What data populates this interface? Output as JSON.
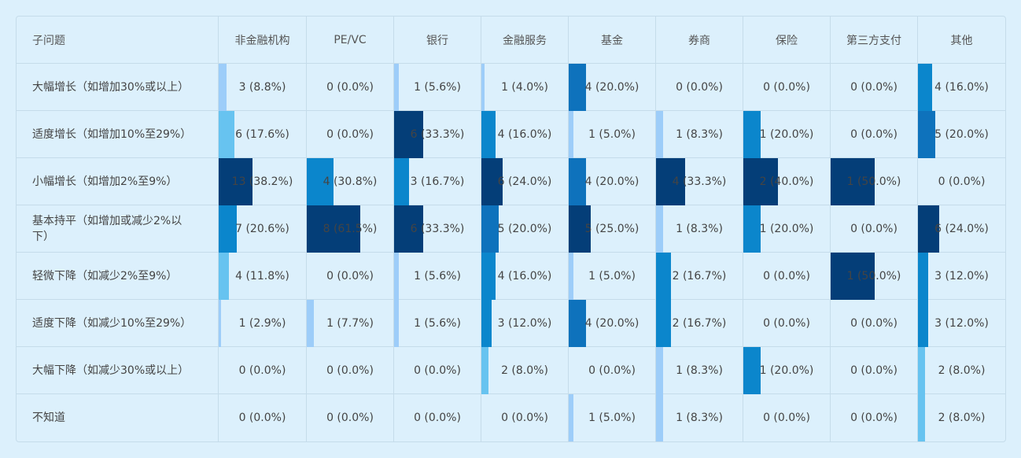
{
  "chart_data": {
    "type": "table",
    "header_label": "子问题",
    "columns": [
      "非金融机构",
      "PE/VC",
      "银行",
      "金融服务",
      "基金",
      "券商",
      "保险",
      "第三方支付",
      "其他"
    ],
    "rows": [
      {
        "label": "大幅增长（如增加30%或以上）",
        "counts": [
          3,
          0,
          1,
          1,
          4,
          0,
          0,
          0,
          4
        ],
        "cells": [
          "3 (8.8%)",
          "0 (0.0%)",
          "1 (5.6%)",
          "1 (4.0%)",
          "4 (20.0%)",
          "0 (0.0%)",
          "0 (0.0%)",
          "0 (0.0%)",
          "4 (16.0%)"
        ]
      },
      {
        "label": "适度增长（如增加10%至29%）",
        "counts": [
          6,
          0,
          6,
          4,
          1,
          1,
          1,
          0,
          5
        ],
        "cells": [
          "6 (17.6%)",
          "0 (0.0%)",
          "6 (33.3%)",
          "4 (16.0%)",
          "1 (5.0%)",
          "1 (8.3%)",
          "1 (20.0%)",
          "0 (0.0%)",
          "5 (20.0%)"
        ]
      },
      {
        "label": "小幅增长（如增加2%至9%）",
        "counts": [
          13,
          4,
          3,
          6,
          4,
          4,
          2,
          1,
          0
        ],
        "cells": [
          "13 (38.2%)",
          "4 (30.8%)",
          "3 (16.7%)",
          "6 (24.0%)",
          "4 (20.0%)",
          "4 (33.3%)",
          "2 (40.0%)",
          "1 (50.0%)",
          "0 (0.0%)"
        ]
      },
      {
        "label": "基本持平（如增加或减少2%以下）",
        "counts": [
          7,
          8,
          6,
          5,
          5,
          1,
          1,
          0,
          6
        ],
        "cells": [
          "7 (20.6%)",
          "8 (61.5%)",
          "6 (33.3%)",
          "5 (20.0%)",
          "5 (25.0%)",
          "1 (8.3%)",
          "1 (20.0%)",
          "0 (0.0%)",
          "6 (24.0%)"
        ]
      },
      {
        "label": "轻微下降（如减少2%至9%）",
        "counts": [
          4,
          0,
          1,
          4,
          1,
          2,
          0,
          1,
          3
        ],
        "cells": [
          "4 (11.8%)",
          "0 (0.0%)",
          "1 (5.6%)",
          "4 (16.0%)",
          "1 (5.0%)",
          "2 (16.7%)",
          "0 (0.0%)",
          "1 (50.0%)",
          "3 (12.0%)"
        ]
      },
      {
        "label": "适度下降（如减少10%至29%）",
        "counts": [
          1,
          1,
          1,
          3,
          4,
          2,
          0,
          0,
          3
        ],
        "cells": [
          "1 (2.9%)",
          "1 (7.7%)",
          "1 (5.6%)",
          "3 (12.0%)",
          "4 (20.0%)",
          "2 (16.7%)",
          "0 (0.0%)",
          "0 (0.0%)",
          "3 (12.0%)"
        ]
      },
      {
        "label": "大幅下降（如减少30%或以上）",
        "counts": [
          0,
          0,
          0,
          2,
          0,
          1,
          1,
          0,
          2
        ],
        "cells": [
          "0 (0.0%)",
          "0 (0.0%)",
          "0 (0.0%)",
          "2 (8.0%)",
          "0 (0.0%)",
          "1 (8.3%)",
          "1 (20.0%)",
          "0 (0.0%)",
          "2 (8.0%)"
        ]
      },
      {
        "label": "不知道",
        "counts": [
          0,
          0,
          0,
          0,
          1,
          1,
          0,
          0,
          2
        ],
        "cells": [
          "0 (0.0%)",
          "0 (0.0%)",
          "0 (0.0%)",
          "0 (0.0%)",
          "1 (5.0%)",
          "1 (8.3%)",
          "0 (0.0%)",
          "0 (0.0%)",
          "2 (8.0%)"
        ]
      }
    ],
    "bar_scale_max_percent": 100,
    "color_scale": [
      "#9dcdf9",
      "#67c3f0",
      "#0b86cc",
      "#0e72bc",
      "#043e78"
    ]
  }
}
